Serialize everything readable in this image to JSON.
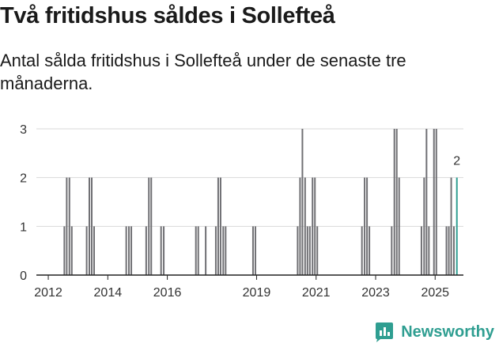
{
  "page": {
    "title": "Två fritidshus såldes i Sollefteå",
    "subtitle": "Antal sålda fritidshus i Sollefteå under de senaste tre månaderna.",
    "brand": "Newsworthy"
  },
  "colors": {
    "bar": "#707074",
    "highlight": "#2f9e91",
    "grid": "#d9d9d9",
    "axis": "#222222",
    "text": "#333333"
  },
  "chart_data": {
    "type": "bar",
    "title": "Två fritidshus såldes i Sollefteå",
    "subtitle": "Antal sålda fritidshus i Sollefteå under de senaste tre månaderna.",
    "xlabel": "",
    "ylabel": "",
    "ylim": [
      0,
      3
    ],
    "yticks": [
      0,
      1,
      2,
      3
    ],
    "xlim": [
      2011.6,
      2025.95
    ],
    "xticks": [
      {
        "value": 2012,
        "label": "2012"
      },
      {
        "value": 2014,
        "label": "2014"
      },
      {
        "value": 2016,
        "label": "2016"
      },
      {
        "value": 2019,
        "label": "2019"
      },
      {
        "value": 2021,
        "label": "2021"
      },
      {
        "value": 2023,
        "label": "2023"
      },
      {
        "value": 2025,
        "label": "2025"
      }
    ],
    "bar_width_years": 0.0833,
    "grid": true,
    "annotation": {
      "x": 2025.73,
      "value": 2,
      "label": "2"
    },
    "series": [
      {
        "name": "Antal sålda fritidshus",
        "x": [
          2012.54,
          2012.62,
          2012.71,
          2012.79,
          2012.88,
          2013.29,
          2013.38,
          2013.46,
          2013.54,
          2014.62,
          2014.71,
          2014.79,
          2015.29,
          2015.38,
          2015.46,
          2015.79,
          2015.88,
          2016.96,
          2017.04,
          2017.29,
          2017.63,
          2017.71,
          2017.79,
          2017.88,
          2017.96,
          2018.88,
          2018.96,
          2020.38,
          2020.46,
          2020.54,
          2020.63,
          2020.71,
          2020.79,
          2020.88,
          2020.96,
          2021.04,
          2022.54,
          2022.63,
          2022.71,
          2022.79,
          2023.54,
          2023.63,
          2023.71,
          2023.79,
          2024.54,
          2024.63,
          2024.71,
          2024.79,
          2024.96,
          2025.04,
          2025.38,
          2025.46,
          2025.54,
          2025.63,
          2025.73
        ],
        "values": [
          1,
          2,
          2,
          1,
          0,
          1,
          2,
          2,
          1,
          1,
          1,
          1,
          1,
          2,
          2,
          1,
          1,
          1,
          1,
          1,
          1,
          2,
          2,
          1,
          1,
          1,
          1,
          1,
          2,
          3,
          2,
          1,
          1,
          2,
          2,
          1,
          1,
          2,
          2,
          1,
          1,
          3,
          3,
          2,
          1,
          2,
          3,
          1,
          3,
          3,
          1,
          1,
          2,
          1,
          2
        ],
        "highlight_index": 54
      }
    ]
  }
}
